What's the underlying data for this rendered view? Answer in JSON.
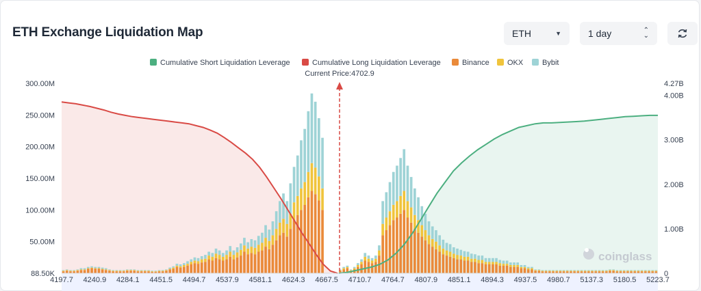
{
  "header": {
    "title": "ETH Exchange Liquidation Map",
    "asset_select": "ETH",
    "range_select": "1 day"
  },
  "colors": {
    "short": "#4caf80",
    "long": "#d94a45",
    "binance": "#ea8a3a",
    "okx": "#f0c43c",
    "bybit": "#9ed3d6"
  },
  "watermark": "coinglass",
  "chart_data": {
    "type": "bar",
    "legend": [
      "Cumulative Short Liquidation Leverage",
      "Cumulative Long Liquidation Leverage",
      "Binance",
      "OKX",
      "Bybit"
    ],
    "current_price_label": "Current Price:4702.9",
    "current_price": 4702.9,
    "x_ticks": [
      "4197.7",
      "4240.9",
      "4284.1",
      "4451.5",
      "4494.7",
      "4537.9",
      "4581.1",
      "4624.3",
      "4667.5",
      "4710.7",
      "4764.7",
      "4807.9",
      "4851.1",
      "4894.3",
      "4937.5",
      "4980.7",
      "5137.3",
      "5180.5",
      "5223.7"
    ],
    "y_left_ticks": [
      "88.50K",
      "50.00M",
      "100.00M",
      "150.00M",
      "200.00M",
      "250.00M",
      "300.00M"
    ],
    "y_right_ticks": [
      "0",
      "1.00B",
      "2.00B",
      "3.00B",
      "4.00B",
      "4.27B"
    ],
    "ylim_left": [
      0,
      300000000
    ],
    "ylim_right": [
      0,
      4270000000
    ],
    "bars": {
      "binance_m": [
        3,
        4,
        3,
        3,
        4,
        5,
        5,
        7,
        8,
        7,
        7,
        6,
        5,
        4,
        3,
        3,
        3,
        3,
        4,
        4,
        4,
        3,
        3,
        3,
        3,
        2,
        2,
        3,
        3,
        4,
        6,
        7,
        10,
        9,
        10,
        12,
        14,
        16,
        15,
        17,
        18,
        22,
        20,
        24,
        22,
        20,
        22,
        26,
        22,
        25,
        28,
        34,
        30,
        32,
        30,
        34,
        36,
        42,
        38,
        45,
        52,
        60,
        64,
        58,
        70,
        84,
        92,
        100,
        108,
        120,
        130,
        125,
        115,
        100,
        0,
        0,
        0,
        0,
        4,
        6,
        8,
        4,
        6,
        10,
        14,
        20,
        18,
        16,
        18,
        28,
        60,
        68,
        76,
        84,
        88,
        94,
        100,
        88,
        80,
        70,
        64,
        58,
        52,
        46,
        42,
        38,
        34,
        30,
        28,
        26,
        24,
        22,
        22,
        20,
        20,
        18,
        18,
        16,
        16,
        14,
        14,
        14,
        14,
        12,
        12,
        12,
        10,
        10,
        10,
        8,
        8,
        6,
        6,
        4,
        4,
        3,
        3,
        3,
        3,
        3,
        3,
        3,
        3,
        3,
        3,
        3,
        3,
        3,
        3,
        3,
        3,
        3,
        3,
        3,
        4,
        4,
        3,
        3,
        3,
        3,
        3,
        3,
        3,
        3,
        3,
        3,
        3,
        3
      ],
      "okx_m": [
        1,
        1,
        1,
        1,
        1,
        1,
        1,
        1,
        1,
        1,
        1,
        1,
        1,
        1,
        1,
        1,
        1,
        1,
        1,
        1,
        1,
        1,
        1,
        1,
        1,
        1,
        1,
        1,
        1,
        1,
        1,
        2,
        2,
        2,
        3,
        3,
        4,
        4,
        4,
        5,
        5,
        6,
        6,
        7,
        7,
        6,
        7,
        8,
        7,
        8,
        9,
        10,
        9,
        10,
        10,
        11,
        12,
        14,
        13,
        15,
        18,
        20,
        22,
        20,
        24,
        28,
        30,
        34,
        36,
        40,
        44,
        42,
        38,
        34,
        0,
        0,
        0,
        0,
        1,
        2,
        2,
        1,
        2,
        3,
        4,
        6,
        5,
        4,
        5,
        8,
        18,
        20,
        22,
        24,
        26,
        28,
        30,
        26,
        24,
        22,
        20,
        18,
        16,
        14,
        12,
        12,
        10,
        9,
        8,
        8,
        7,
        7,
        6,
        6,
        6,
        5,
        5,
        5,
        5,
        4,
        4,
        4,
        4,
        4,
        3,
        3,
        3,
        3,
        3,
        2,
        2,
        2,
        2,
        1,
        1,
        1,
        1,
        1,
        1,
        1,
        1,
        1,
        1,
        1,
        1,
        1,
        1,
        1,
        1,
        1,
        1,
        1,
        1,
        1,
        1,
        1,
        1,
        1,
        1,
        1,
        1,
        1,
        1,
        1,
        1,
        1,
        1,
        1
      ],
      "bybit_m": [
        1,
        1,
        1,
        1,
        1,
        2,
        2,
        2,
        2,
        2,
        2,
        2,
        2,
        1,
        1,
        1,
        1,
        1,
        1,
        1,
        1,
        1,
        1,
        1,
        1,
        1,
        1,
        1,
        1,
        1,
        2,
        2,
        3,
        3,
        3,
        4,
        4,
        5,
        5,
        5,
        6,
        6,
        6,
        8,
        7,
        6,
        7,
        9,
        7,
        8,
        10,
        12,
        10,
        12,
        12,
        14,
        16,
        20,
        18,
        22,
        28,
        34,
        40,
        36,
        48,
        56,
        64,
        76,
        84,
        96,
        110,
        104,
        92,
        80,
        0,
        0,
        0,
        0,
        1,
        2,
        2,
        1,
        2,
        3,
        4,
        6,
        5,
        4,
        5,
        8,
        36,
        40,
        46,
        52,
        56,
        60,
        66,
        56,
        48,
        42,
        36,
        30,
        26,
        22,
        20,
        18,
        16,
        14,
        12,
        12,
        10,
        10,
        9,
        9,
        8,
        8,
        7,
        7,
        7,
        6,
        6,
        6,
        6,
        5,
        5,
        5,
        4,
        4,
        4,
        3,
        3,
        2,
        2,
        1,
        1,
        1,
        1,
        1,
        1,
        1,
        1,
        1,
        1,
        1,
        1,
        1,
        1,
        1,
        1,
        1,
        1,
        1,
        1,
        1,
        1,
        1,
        1,
        1,
        1,
        1,
        1,
        1,
        1,
        1,
        1,
        1,
        1,
        1
      ]
    },
    "cumulative_long_b": [
      3.85,
      3.83,
      3.81,
      3.78,
      3.75,
      3.71,
      3.67,
      3.62,
      3.58,
      3.55,
      3.52,
      3.5,
      3.48,
      3.46,
      3.44,
      3.42,
      3.4,
      3.38,
      3.36,
      3.32,
      3.28,
      3.22,
      3.15,
      3.05,
      2.94,
      2.82,
      2.7,
      2.56,
      2.38,
      2.16,
      1.92,
      1.68,
      1.42,
      1.16,
      0.9,
      0.66,
      0.42,
      0.2,
      0.05,
      0
    ],
    "cumulative_short_b": [
      0,
      0.02,
      0.06,
      0.1,
      0.14,
      0.2,
      0.3,
      0.45,
      0.65,
      0.9,
      1.2,
      1.5,
      1.8,
      2.05,
      2.3,
      2.48,
      2.64,
      2.78,
      2.9,
      3.02,
      3.12,
      3.2,
      3.28,
      3.32,
      3.36,
      3.38,
      3.38,
      3.39,
      3.4,
      3.41,
      3.42,
      3.44,
      3.46,
      3.48,
      3.5,
      3.52,
      3.53,
      3.54,
      3.55,
      3.55
    ]
  }
}
